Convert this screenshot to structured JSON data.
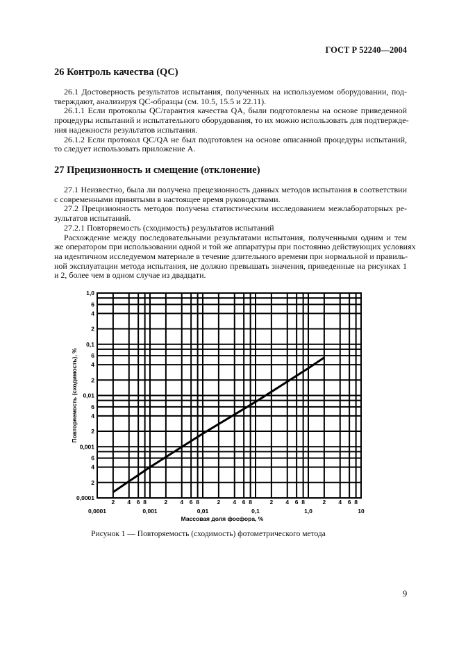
{
  "header": "ГОСТ Р 52240—2004",
  "section26": {
    "heading": "26  Контроль качества (QC)",
    "paragraphs": [
      [
        "26.1  Достоверность результатов испытания, полученных на используемом оборудовании, под-",
        "тверждают, анализируя QC-образцы (см. 10.5, 15.5 и 22.11)."
      ],
      [
        "26.1.1  Если протоколы QC/гарантия качества QA, были подготовлены на основе приведенной",
        "процедуры испытаний и испытательного оборудования, то их можно использовать для подтвержде-",
        "ния надежности результатов испытания."
      ],
      [
        "26.1.2  Если протокол QC/QA не был подготовлен на основе описанной процедуры испытаний,",
        "то следует использовать приложение А."
      ]
    ]
  },
  "section27": {
    "heading": "27  Прецизионность и смещение (отклонение)",
    "paragraphs": [
      [
        "27.1  Неизвестно, была ли получена прецезионность данных методов испытания в соответствии",
        "с современными принятыми в настоящее время руководствами."
      ],
      [
        "27.2  Прецизионность методов получена статистическим исследованием межлабораторных ре-",
        "зультатов испытаний."
      ],
      [
        "27.2.1  Повторяемость (сходимость) результатов испытаний"
      ],
      [
        "Расхождение между последовательными результатами испытания, полученными одним и тем",
        "же оператором при использовании одной и той же аппаратуры при постоянно действующих условиях",
        "на идентичном исследуемом материале в течение длительного времени при нормальной и правиль-",
        "ной эксплуатации метода испытания, не должно превышать значения, приведенные на рисунках 1",
        "и 2, более чем в одном случае из двадцати."
      ]
    ]
  },
  "chart_data": {
    "type": "line",
    "xlabel": "Массовая доля фосфора, %",
    "ylabel": "Повторяемость (сходимость), %",
    "xscale": "log",
    "yscale": "log",
    "xlim": [
      0.0001,
      10
    ],
    "ylim": [
      0.0001,
      1.0
    ],
    "grid": true,
    "x_major_ticks": [
      {
        "v": 0.0001,
        "label": "0,0001"
      },
      {
        "v": 0.001,
        "label": "0,001"
      },
      {
        "v": 0.01,
        "label": "0,01"
      },
      {
        "v": 0.1,
        "label": "0,1"
      },
      {
        "v": 1,
        "label": "1,0"
      },
      {
        "v": 10,
        "label": "10"
      }
    ],
    "x_minor_labels": [
      "2",
      "4",
      "6",
      "8"
    ],
    "y_major_ticks": [
      {
        "v": 0.0001,
        "label": "0,0001"
      },
      {
        "v": 0.001,
        "label": "0,001"
      },
      {
        "v": 0.01,
        "label": "0,01"
      },
      {
        "v": 0.1,
        "label": "0,1"
      },
      {
        "v": 1,
        "label": "1,0"
      }
    ],
    "y_minor_labels": [
      "2",
      "4",
      "6"
    ],
    "series": [
      {
        "x": [
          0.0002,
          0.001,
          0.01,
          0.1,
          1.0,
          2.0
        ],
        "y": [
          0.00013,
          0.0004,
          0.0018,
          0.0075,
          0.034,
          0.055
        ]
      }
    ],
    "color": "#000000"
  },
  "caption": "Рисунок 1 — Повторяемость (сходимость) фотометрического метода",
  "page_number": "9"
}
